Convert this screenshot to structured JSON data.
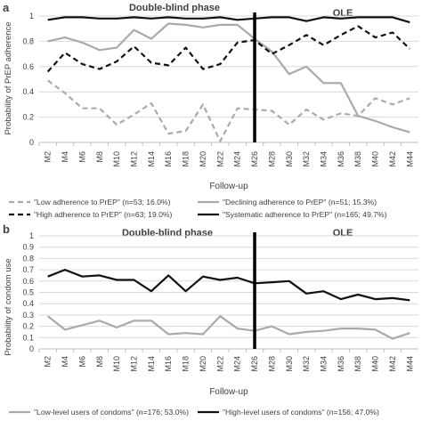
{
  "chart_data": [
    {
      "panel_label": "a",
      "type": "line",
      "phase_labels": [
        "Double-blind phase",
        "OLE"
      ],
      "phase_divider_x": "M26",
      "ylabel": "Probability of PrEP adherence",
      "xlabel": "Follow-up",
      "ylim": [
        0,
        1
      ],
      "yticks": [
        "0",
        "0.2",
        "0.4",
        "0.6",
        "0.8",
        "1"
      ],
      "x": [
        "M2",
        "M4",
        "M6",
        "M8",
        "M10",
        "M12",
        "M14",
        "M16",
        "M18",
        "M20",
        "M22",
        "M24",
        "M26",
        "M28",
        "M30",
        "M32",
        "M34",
        "M36",
        "M38",
        "M40",
        "M42",
        "M44"
      ],
      "grid": true,
      "legend_position": "bottom",
      "series": [
        {
          "name": "\"Low adherence to PrEP\" (n=53; 16.0%)",
          "style": "dashed",
          "color": "#aaaaaa",
          "values": [
            0.49,
            0.39,
            0.27,
            0.27,
            0.14,
            0.22,
            0.31,
            0.07,
            0.09,
            0.3,
            0.01,
            0.27,
            0.26,
            0.25,
            0.14,
            0.26,
            0.18,
            0.23,
            0.21,
            0.35,
            0.3,
            0.35
          ]
        },
        {
          "name": "\"Declining adherence to PrEP\" (n=51; 15.3%)",
          "style": "solid",
          "color": "#aaaaaa",
          "values": [
            0.8,
            0.83,
            0.79,
            0.73,
            0.75,
            0.89,
            0.82,
            0.94,
            0.93,
            0.91,
            0.93,
            0.93,
            0.82,
            0.72,
            0.54,
            0.6,
            0.47,
            0.47,
            0.21,
            0.17,
            0.12,
            0.08
          ]
        },
        {
          "name": "\"High adherence to PrEP\" (n=63; 19.0%)",
          "style": "dashed",
          "color": "#111111",
          "values": [
            0.56,
            0.71,
            0.62,
            0.58,
            0.64,
            0.76,
            0.63,
            0.61,
            0.75,
            0.58,
            0.62,
            0.79,
            0.81,
            0.7,
            0.77,
            0.85,
            0.77,
            0.85,
            0.92,
            0.83,
            0.87,
            0.74
          ]
        },
        {
          "name": "\"Systematic adherence to PrEP\" (n=165; 49.7%)",
          "style": "solid",
          "color": "#111111",
          "values": [
            0.97,
            0.99,
            0.99,
            0.98,
            0.98,
            0.99,
            0.98,
            0.99,
            0.98,
            0.98,
            0.99,
            0.97,
            0.98,
            0.99,
            0.99,
            0.96,
            0.99,
            0.98,
            0.99,
            0.99,
            0.99,
            0.95
          ]
        }
      ]
    },
    {
      "panel_label": "b",
      "type": "line",
      "phase_labels": [
        "Double-blind phase",
        "OLE"
      ],
      "phase_divider_x": "M26",
      "ylabel": "Probability of condom use",
      "xlabel": "Follow-up",
      "ylim": [
        0,
        1
      ],
      "yticks": [
        "0",
        "0.1",
        "0.2",
        "0.3",
        "0.4",
        "0.5",
        "0.6",
        "0.7",
        "0.8",
        "0.9",
        "1"
      ],
      "x": [
        "M2",
        "M4",
        "M6",
        "M8",
        "M10",
        "M12",
        "M14",
        "M16",
        "M18",
        "M20",
        "M22",
        "M24",
        "M26",
        "M28",
        "M30",
        "M32",
        "M34",
        "M36",
        "M38",
        "M40",
        "M42",
        "M44"
      ],
      "grid": true,
      "legend_position": "bottom",
      "series": [
        {
          "name": "\"Low-level users of condoms\" (n=176; 53.0%)",
          "style": "solid",
          "color": "#aaaaaa",
          "values": [
            0.29,
            0.17,
            0.21,
            0.25,
            0.19,
            0.25,
            0.25,
            0.13,
            0.14,
            0.13,
            0.29,
            0.18,
            0.16,
            0.2,
            0.13,
            0.15,
            0.16,
            0.18,
            0.18,
            0.17,
            0.09,
            0.14
          ]
        },
        {
          "name": "\"High-level users of condoms\" (n=156; 47.0%)",
          "style": "solid",
          "color": "#111111",
          "values": [
            0.64,
            0.7,
            0.64,
            0.65,
            0.61,
            0.61,
            0.51,
            0.65,
            0.51,
            0.64,
            0.61,
            0.63,
            0.58,
            0.59,
            0.6,
            0.49,
            0.51,
            0.44,
            0.48,
            0.44,
            0.45,
            0.43
          ]
        }
      ]
    }
  ]
}
